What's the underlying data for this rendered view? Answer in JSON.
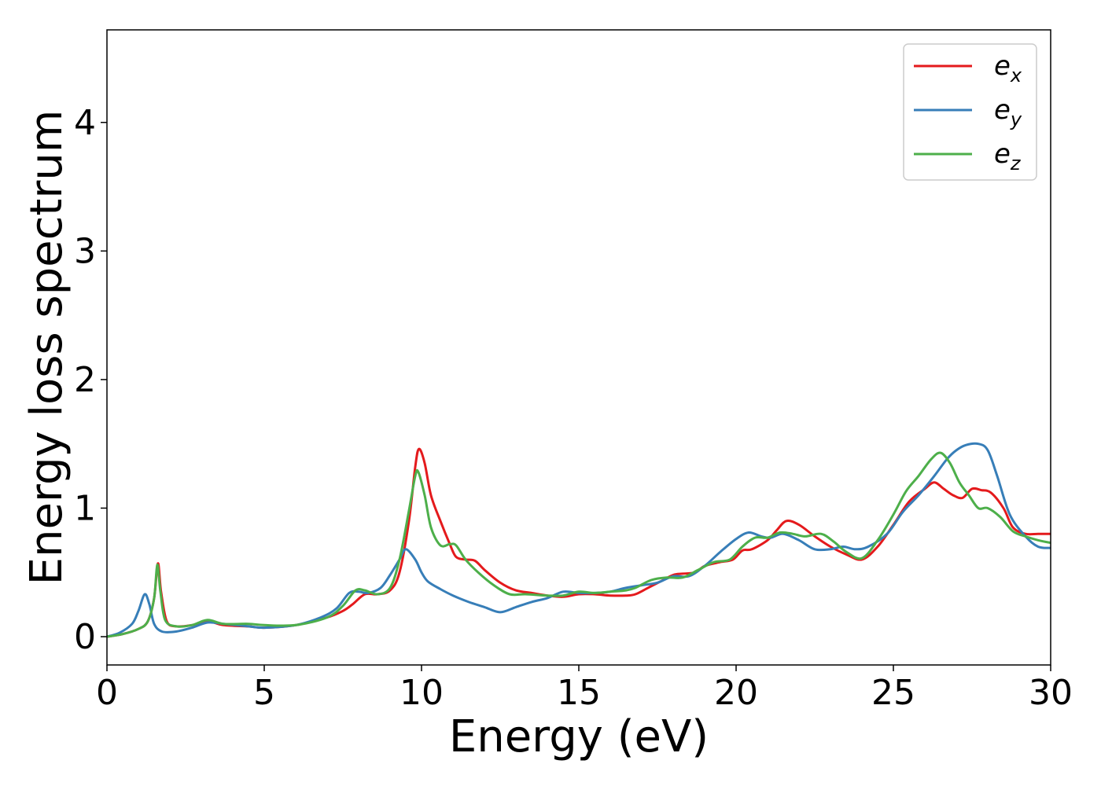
{
  "chart_data": {
    "type": "line",
    "title": "",
    "xlabel": "Energy (eV)",
    "ylabel": "Energy loss spectrum",
    "xlim": [
      0,
      30
    ],
    "ylim": [
      -0.22,
      4.72
    ],
    "xticks": [
      0,
      5,
      10,
      15,
      20,
      25,
      30
    ],
    "yticks": [
      0,
      1,
      2,
      3,
      4
    ],
    "grid": false,
    "legend_position": "top-right",
    "series": [
      {
        "name": "e",
        "sub": "x",
        "color": "#e41a1c",
        "points": [
          [
            0,
            0
          ],
          [
            0.5,
            0.02
          ],
          [
            1.0,
            0.06
          ],
          [
            1.3,
            0.12
          ],
          [
            1.5,
            0.3
          ],
          [
            1.62,
            0.57
          ],
          [
            1.72,
            0.35
          ],
          [
            1.9,
            0.12
          ],
          [
            2.2,
            0.08
          ],
          [
            2.7,
            0.09
          ],
          [
            3.2,
            0.12
          ],
          [
            3.7,
            0.09
          ],
          [
            4.5,
            0.08
          ],
          [
            5.0,
            0.07
          ],
          [
            6.0,
            0.09
          ],
          [
            7.0,
            0.15
          ],
          [
            7.5,
            0.2
          ],
          [
            7.8,
            0.25
          ],
          [
            8.2,
            0.33
          ],
          [
            8.6,
            0.33
          ],
          [
            9.0,
            0.36
          ],
          [
            9.3,
            0.5
          ],
          [
            9.6,
            0.9
          ],
          [
            9.8,
            1.32
          ],
          [
            9.92,
            1.46
          ],
          [
            10.1,
            1.35
          ],
          [
            10.3,
            1.1
          ],
          [
            10.6,
            0.9
          ],
          [
            10.9,
            0.72
          ],
          [
            11.1,
            0.62
          ],
          [
            11.4,
            0.6
          ],
          [
            11.7,
            0.59
          ],
          [
            12.0,
            0.52
          ],
          [
            12.5,
            0.42
          ],
          [
            13.0,
            0.36
          ],
          [
            13.5,
            0.34
          ],
          [
            14.0,
            0.32
          ],
          [
            14.5,
            0.31
          ],
          [
            15.0,
            0.33
          ],
          [
            15.5,
            0.33
          ],
          [
            16.0,
            0.32
          ],
          [
            16.5,
            0.32
          ],
          [
            16.8,
            0.33
          ],
          [
            17.2,
            0.38
          ],
          [
            17.6,
            0.43
          ],
          [
            18.0,
            0.48
          ],
          [
            18.3,
            0.49
          ],
          [
            18.7,
            0.5
          ],
          [
            19.0,
            0.55
          ],
          [
            19.5,
            0.58
          ],
          [
            19.9,
            0.6
          ],
          [
            20.2,
            0.67
          ],
          [
            20.5,
            0.68
          ],
          [
            21.0,
            0.75
          ],
          [
            21.3,
            0.83
          ],
          [
            21.6,
            0.9
          ],
          [
            22.0,
            0.87
          ],
          [
            22.5,
            0.78
          ],
          [
            23.0,
            0.7
          ],
          [
            23.5,
            0.64
          ],
          [
            24.0,
            0.6
          ],
          [
            24.5,
            0.7
          ],
          [
            25.0,
            0.87
          ],
          [
            25.5,
            1.05
          ],
          [
            26.0,
            1.15
          ],
          [
            26.3,
            1.2
          ],
          [
            26.6,
            1.15
          ],
          [
            26.9,
            1.1
          ],
          [
            27.2,
            1.08
          ],
          [
            27.5,
            1.15
          ],
          [
            27.8,
            1.14
          ],
          [
            28.1,
            1.12
          ],
          [
            28.5,
            1.0
          ],
          [
            28.8,
            0.85
          ],
          [
            29.2,
            0.8
          ],
          [
            29.6,
            0.8
          ],
          [
            30,
            0.8
          ]
        ]
      },
      {
        "name": "e",
        "sub": "y",
        "color": "#377eb8",
        "points": [
          [
            0,
            0
          ],
          [
            0.4,
            0.03
          ],
          [
            0.8,
            0.1
          ],
          [
            1.0,
            0.2
          ],
          [
            1.2,
            0.33
          ],
          [
            1.35,
            0.25
          ],
          [
            1.5,
            0.1
          ],
          [
            1.75,
            0.04
          ],
          [
            2.2,
            0.04
          ],
          [
            2.7,
            0.07
          ],
          [
            3.2,
            0.11
          ],
          [
            3.7,
            0.1
          ],
          [
            4.5,
            0.08
          ],
          [
            5.0,
            0.07
          ],
          [
            6.0,
            0.09
          ],
          [
            6.8,
            0.15
          ],
          [
            7.3,
            0.22
          ],
          [
            7.7,
            0.34
          ],
          [
            8.0,
            0.35
          ],
          [
            8.3,
            0.34
          ],
          [
            8.7,
            0.38
          ],
          [
            9.0,
            0.48
          ],
          [
            9.3,
            0.6
          ],
          [
            9.5,
            0.68
          ],
          [
            9.8,
            0.6
          ],
          [
            10.0,
            0.5
          ],
          [
            10.2,
            0.43
          ],
          [
            10.6,
            0.37
          ],
          [
            11.0,
            0.32
          ],
          [
            11.5,
            0.27
          ],
          [
            12.0,
            0.23
          ],
          [
            12.5,
            0.19
          ],
          [
            13.0,
            0.23
          ],
          [
            13.5,
            0.27
          ],
          [
            14.0,
            0.3
          ],
          [
            14.5,
            0.35
          ],
          [
            15.0,
            0.34
          ],
          [
            15.5,
            0.34
          ],
          [
            16.0,
            0.35
          ],
          [
            16.5,
            0.38
          ],
          [
            17.0,
            0.4
          ],
          [
            17.5,
            0.42
          ],
          [
            18.0,
            0.47
          ],
          [
            18.5,
            0.47
          ],
          [
            19.0,
            0.55
          ],
          [
            19.5,
            0.66
          ],
          [
            20.0,
            0.76
          ],
          [
            20.4,
            0.81
          ],
          [
            20.8,
            0.78
          ],
          [
            21.1,
            0.77
          ],
          [
            21.5,
            0.8
          ],
          [
            22.0,
            0.75
          ],
          [
            22.5,
            0.68
          ],
          [
            23.0,
            0.68
          ],
          [
            23.4,
            0.7
          ],
          [
            23.8,
            0.68
          ],
          [
            24.2,
            0.7
          ],
          [
            24.8,
            0.8
          ],
          [
            25.3,
            0.97
          ],
          [
            25.8,
            1.1
          ],
          [
            26.3,
            1.25
          ],
          [
            26.7,
            1.38
          ],
          [
            27.0,
            1.45
          ],
          [
            27.3,
            1.49
          ],
          [
            27.7,
            1.5
          ],
          [
            28.0,
            1.45
          ],
          [
            28.3,
            1.25
          ],
          [
            28.7,
            0.95
          ],
          [
            29.2,
            0.78
          ],
          [
            29.6,
            0.7
          ],
          [
            30,
            0.69
          ]
        ]
      },
      {
        "name": "e",
        "sub": "z",
        "color": "#4daf4a",
        "points": [
          [
            0,
            0
          ],
          [
            0.5,
            0.02
          ],
          [
            1.0,
            0.06
          ],
          [
            1.3,
            0.12
          ],
          [
            1.5,
            0.3
          ],
          [
            1.6,
            0.56
          ],
          [
            1.7,
            0.35
          ],
          [
            1.85,
            0.13
          ],
          [
            2.2,
            0.08
          ],
          [
            2.7,
            0.09
          ],
          [
            3.2,
            0.13
          ],
          [
            3.7,
            0.1
          ],
          [
            4.5,
            0.1
          ],
          [
            5.0,
            0.09
          ],
          [
            6.0,
            0.09
          ],
          [
            7.0,
            0.15
          ],
          [
            7.5,
            0.24
          ],
          [
            7.9,
            0.36
          ],
          [
            8.2,
            0.36
          ],
          [
            8.6,
            0.33
          ],
          [
            9.0,
            0.38
          ],
          [
            9.3,
            0.6
          ],
          [
            9.6,
            0.98
          ],
          [
            9.8,
            1.25
          ],
          [
            9.9,
            1.28
          ],
          [
            10.1,
            1.1
          ],
          [
            10.3,
            0.85
          ],
          [
            10.6,
            0.71
          ],
          [
            10.9,
            0.72
          ],
          [
            11.1,
            0.71
          ],
          [
            11.4,
            0.6
          ],
          [
            11.8,
            0.5
          ],
          [
            12.3,
            0.4
          ],
          [
            12.8,
            0.33
          ],
          [
            13.3,
            0.33
          ],
          [
            14.0,
            0.32
          ],
          [
            14.5,
            0.32
          ],
          [
            15.0,
            0.35
          ],
          [
            15.5,
            0.34
          ],
          [
            16.0,
            0.35
          ],
          [
            16.5,
            0.36
          ],
          [
            16.8,
            0.38
          ],
          [
            17.3,
            0.44
          ],
          [
            17.8,
            0.46
          ],
          [
            18.3,
            0.46
          ],
          [
            18.8,
            0.52
          ],
          [
            19.3,
            0.58
          ],
          [
            19.8,
            0.6
          ],
          [
            20.2,
            0.7
          ],
          [
            20.6,
            0.77
          ],
          [
            21.0,
            0.77
          ],
          [
            21.4,
            0.81
          ],
          [
            21.8,
            0.8
          ],
          [
            22.2,
            0.78
          ],
          [
            22.7,
            0.8
          ],
          [
            23.1,
            0.74
          ],
          [
            23.5,
            0.66
          ],
          [
            24.0,
            0.61
          ],
          [
            24.5,
            0.75
          ],
          [
            25.0,
            0.95
          ],
          [
            25.4,
            1.13
          ],
          [
            25.8,
            1.25
          ],
          [
            26.2,
            1.38
          ],
          [
            26.5,
            1.43
          ],
          [
            26.8,
            1.35
          ],
          [
            27.1,
            1.2
          ],
          [
            27.4,
            1.1
          ],
          [
            27.7,
            1.0
          ],
          [
            28.0,
            1.0
          ],
          [
            28.4,
            0.93
          ],
          [
            28.8,
            0.82
          ],
          [
            29.2,
            0.78
          ],
          [
            29.6,
            0.75
          ],
          [
            30,
            0.73
          ]
        ]
      }
    ]
  }
}
